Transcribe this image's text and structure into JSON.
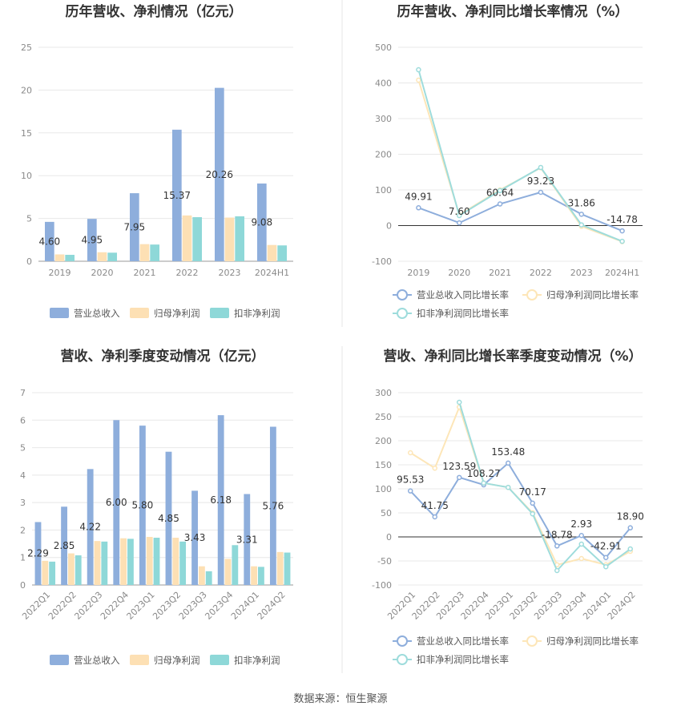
{
  "colors": {
    "revenue": "#8eaedc",
    "net_profit": "#fde0b4",
    "deducted_profit": "#8ed8d8",
    "revenue_line": "#8eaedc",
    "net_profit_line": "#fde6b8",
    "deducted_line": "#9edcdc",
    "grid": "#e8e8e8",
    "divider": "#e6e6e6"
  },
  "source": "数据来源：恒生聚源",
  "chart_data": [
    {
      "type": "bar",
      "title": "历年营收、净利情况（亿元）",
      "categories": [
        "2019",
        "2020",
        "2021",
        "2022",
        "2023",
        "2024H1"
      ],
      "ylim": [
        0,
        25
      ],
      "yticks": [
        "0",
        "5",
        "10",
        "15",
        "20",
        "25"
      ],
      "series": [
        {
          "name": "营业总收入",
          "values": [
            4.6,
            4.95,
            7.95,
            15.37,
            20.26,
            9.08
          ],
          "labels": [
            "4.60",
            "4.95",
            "7.95",
            "15.37",
            "20.26",
            "9.08"
          ]
        },
        {
          "name": "归母净利润",
          "values": [
            0.8,
            1.05,
            2.0,
            5.35,
            5.1,
            1.9
          ]
        },
        {
          "name": "扣非净利润",
          "values": [
            0.75,
            1.0,
            1.95,
            5.15,
            5.25,
            1.85
          ]
        }
      ],
      "legend": "bottom"
    },
    {
      "type": "line",
      "title": "历年营收、净利同比增长率情况（%）",
      "categories": [
        "2019",
        "2020",
        "2021",
        "2022",
        "2023",
        "2024H1"
      ],
      "ylim": [
        -100,
        500
      ],
      "yticks": [
        "-100",
        "0",
        "100",
        "200",
        "300",
        "400",
        "500"
      ],
      "series": [
        {
          "name": "营业总收入同比增长率",
          "values": [
            49.91,
            7.6,
            60.64,
            93.23,
            31.86,
            -14.78
          ],
          "labels": [
            "49.91",
            "7.60",
            "60.64",
            "93.23",
            "31.86",
            "-14.78"
          ]
        },
        {
          "name": "归母净利润同比增长率",
          "values": [
            408,
            30,
            100,
            162,
            -2,
            -45
          ]
        },
        {
          "name": "扣非净利润同比增长率",
          "values": [
            437,
            28,
            98,
            163,
            2,
            -44
          ]
        }
      ],
      "legend": "bottom"
    },
    {
      "type": "bar",
      "title": "营收、净利季度变动情况（亿元）",
      "categories": [
        "2022Q1",
        "2022Q2",
        "2022Q3",
        "2022Q4",
        "2023Q1",
        "2023Q2",
        "2023Q3",
        "2023Q4",
        "2024Q1",
        "2024Q2"
      ],
      "ylim": [
        0,
        7
      ],
      "yticks": [
        "0",
        "1",
        "2",
        "3",
        "4",
        "5",
        "6",
        "7"
      ],
      "series": [
        {
          "name": "营业总收入",
          "values": [
            2.29,
            2.85,
            4.22,
            6.0,
            5.8,
            4.85,
            3.43,
            6.18,
            3.31,
            5.76
          ],
          "labels": [
            "2.29",
            "2.85",
            "4.22",
            "6.00",
            "5.80",
            "4.85",
            "3.43",
            "6.18",
            "3.31",
            "5.76"
          ]
        },
        {
          "name": "归母净利润",
          "values": [
            0.88,
            1.15,
            1.6,
            1.7,
            1.75,
            1.72,
            0.68,
            0.95,
            0.68,
            1.2
          ]
        },
        {
          "name": "扣非净利润",
          "values": [
            0.85,
            1.08,
            1.58,
            1.68,
            1.72,
            1.58,
            0.5,
            1.45,
            0.66,
            1.18
          ]
        }
      ],
      "legend": "bottom"
    },
    {
      "type": "line",
      "title": "营收、净利同比增长率季度变动情况（%）",
      "categories": [
        "2022Q1",
        "2022Q2",
        "2022Q3",
        "2022Q4",
        "2023Q1",
        "2023Q2",
        "2023Q3",
        "2023Q4",
        "2024Q1",
        "2024Q2"
      ],
      "ylim": [
        -100,
        300
      ],
      "yticks": [
        "-100",
        "-50",
        "0",
        "50",
        "100",
        "150",
        "200",
        "250",
        "300"
      ],
      "series": [
        {
          "name": "营业总收入同比增长率",
          "values": [
            95.53,
            41.75,
            123.59,
            108.27,
            153.48,
            70.17,
            -18.78,
            2.93,
            -42.91,
            18.9
          ],
          "labels": [
            "95.53",
            "41.75",
            "123.59",
            "108.27",
            "153.48",
            "70.17",
            "-18.78",
            "2.93",
            "-42.91",
            "18.90"
          ]
        },
        {
          "name": "归母净利润同比增长率",
          "values": [
            175,
            143,
            270,
            112,
            103,
            50,
            -58,
            -45,
            -58,
            -30
          ]
        },
        {
          "name": "扣非净利润同比增长率",
          "values": [
            null,
            null,
            280,
            112,
            103,
            48,
            -70,
            -15,
            -62,
            -25
          ]
        }
      ],
      "legend": "bottom"
    }
  ]
}
